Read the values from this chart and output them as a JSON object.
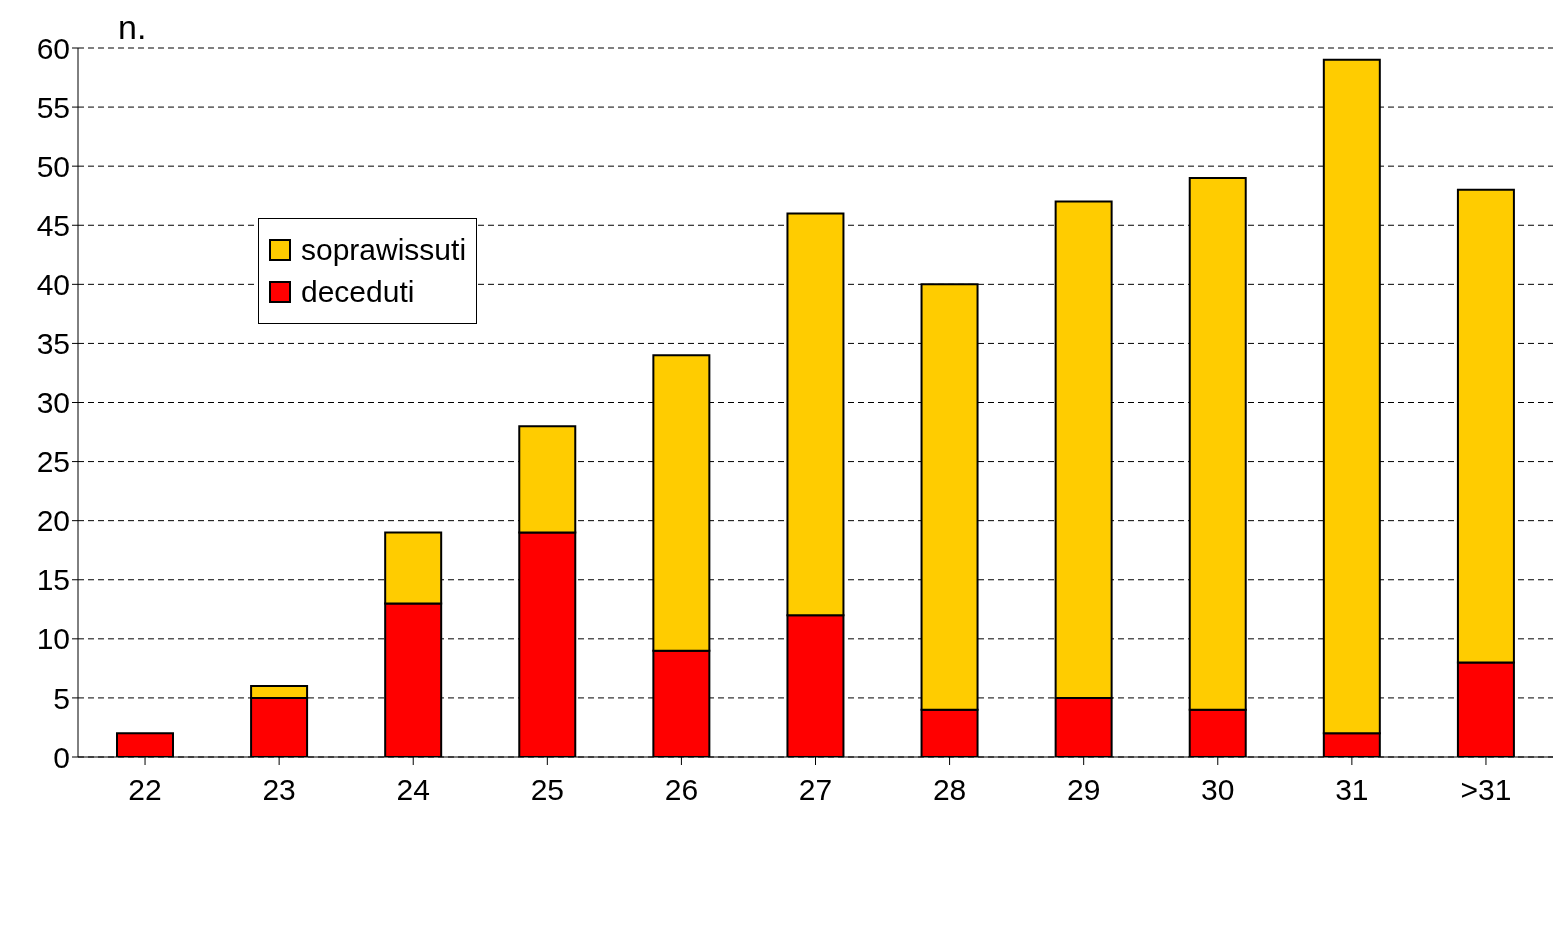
{
  "chart_data": {
    "type": "bar",
    "ylabel": "n.",
    "categories": [
      "22",
      "23",
      "24",
      "25",
      "26",
      "27",
      "28",
      "29",
      "30",
      "31",
      ">31"
    ],
    "stacked": true,
    "series": [
      {
        "name": "deceduti",
        "color": "#ff0000",
        "values": [
          2,
          5,
          13,
          19,
          9,
          12,
          4,
          5,
          4,
          2,
          8
        ]
      },
      {
        "name": "soprawissuti",
        "color": "#ffcc00",
        "values": [
          0,
          1,
          6,
          9,
          25,
          34,
          36,
          42,
          45,
          57,
          40
        ]
      }
    ],
    "ylim": [
      0,
      60
    ],
    "yticks": [
      0,
      5,
      10,
      15,
      20,
      25,
      30,
      35,
      40,
      45,
      50,
      55,
      60
    ],
    "grid": "y",
    "legend": "top left"
  }
}
